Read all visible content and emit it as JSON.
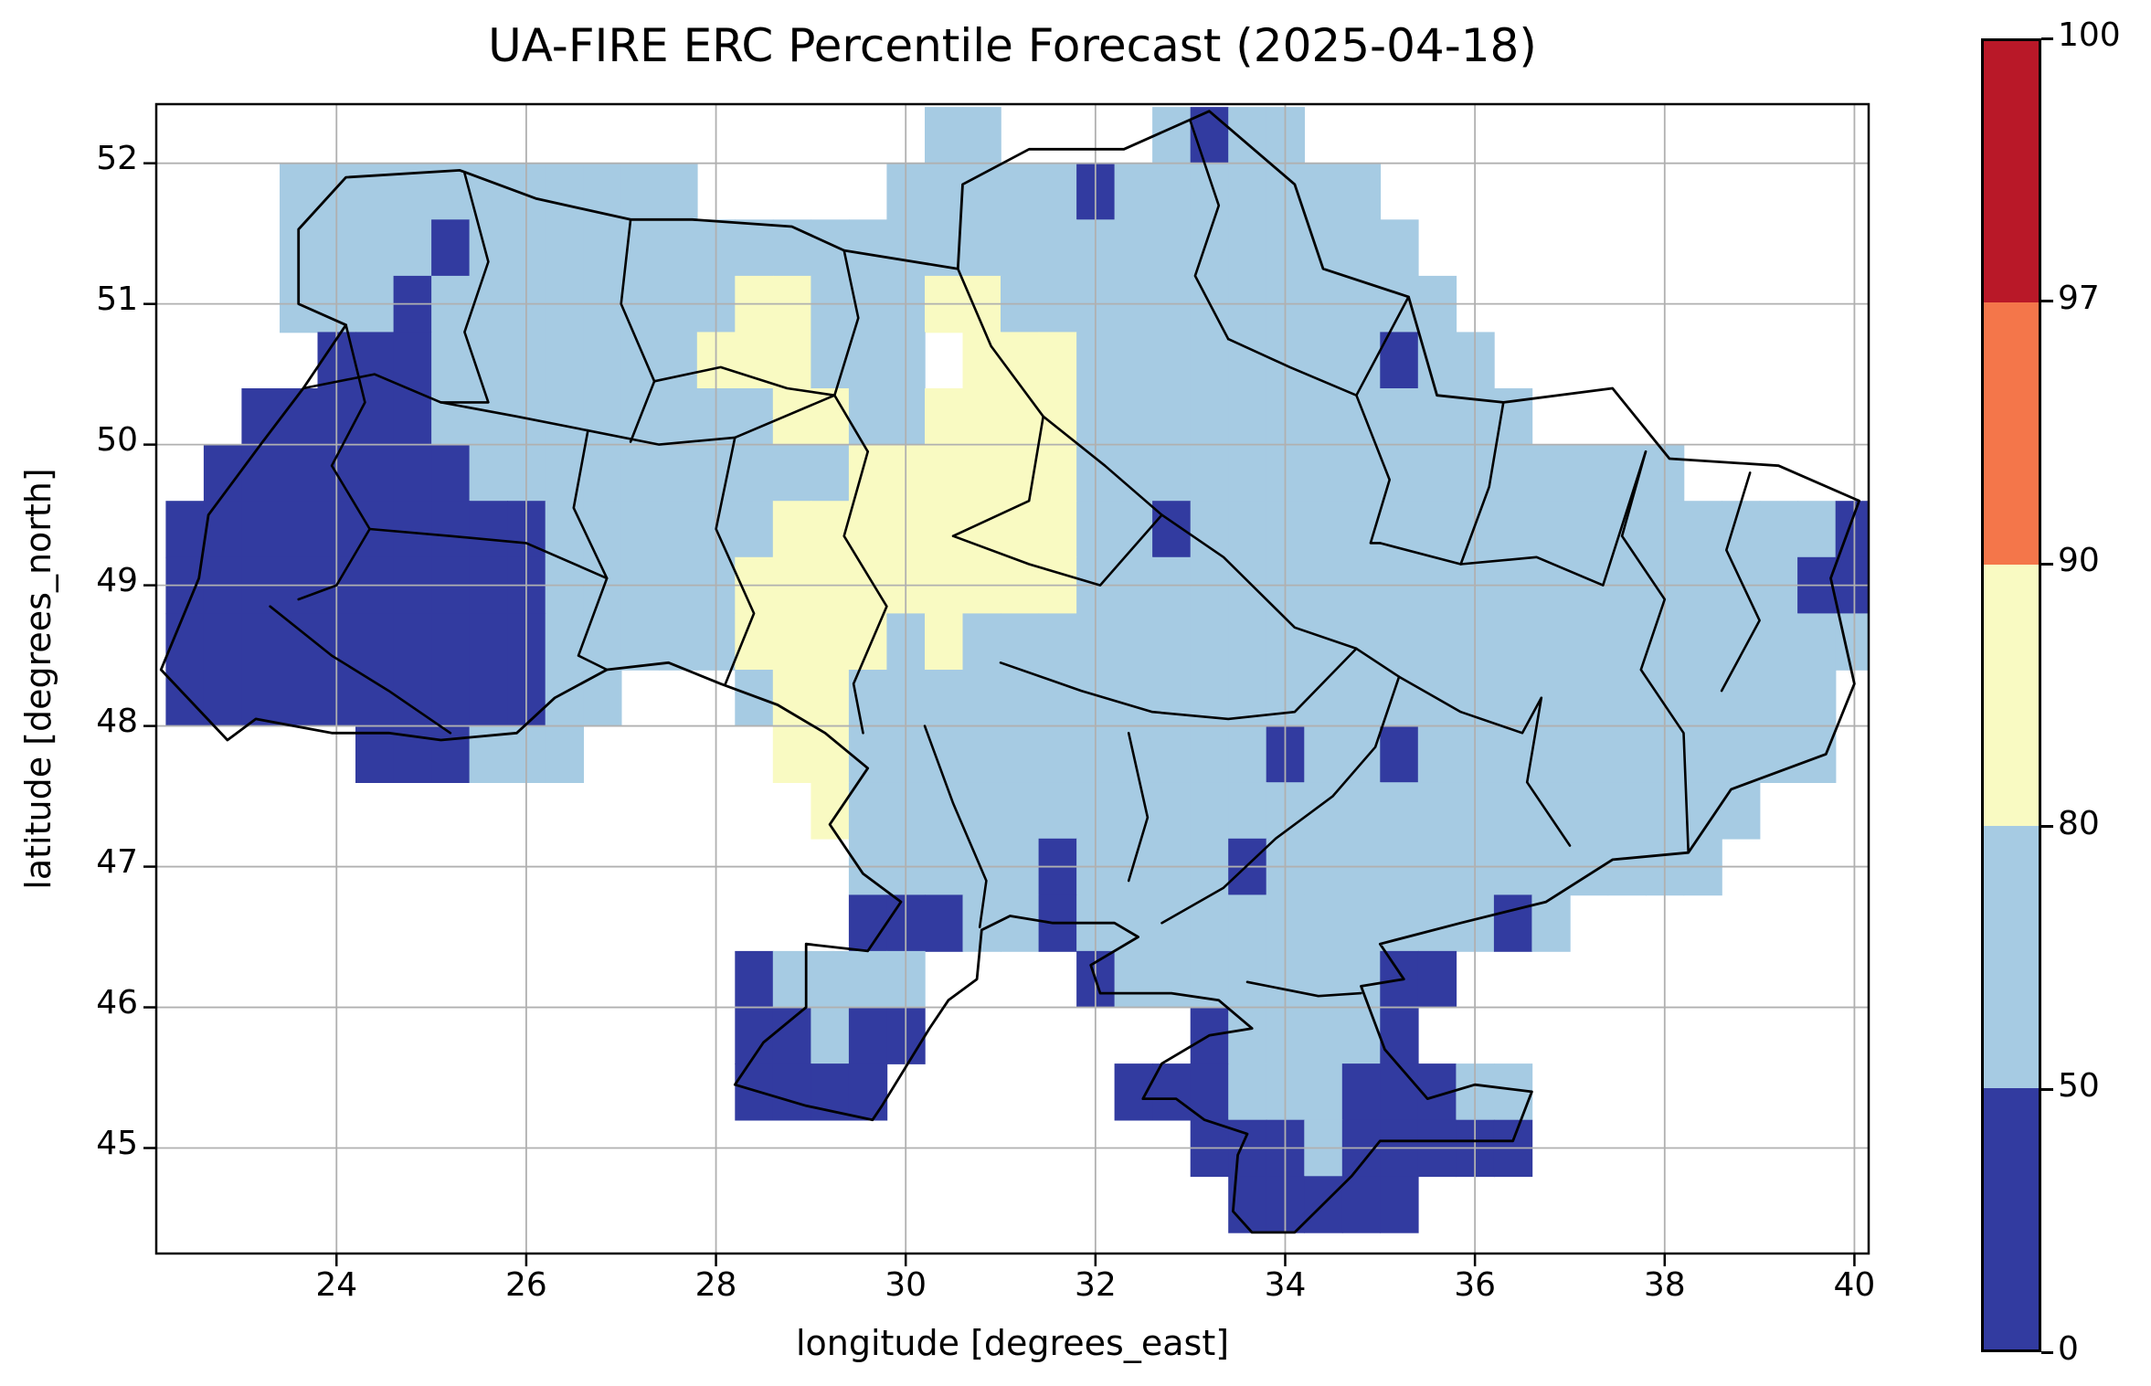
{
  "title": "UA-FIRE ERC Percentile Forecast (2025-04-18)",
  "axes": {
    "xlabel": "longitude [degrees_east]",
    "ylabel": "latitude [degrees_north]"
  },
  "colorbar": {
    "tick_labels": [
      "100",
      "97",
      "90",
      "80",
      "50",
      "0"
    ],
    "segments": [
      {
        "label": "97-100",
        "color": "#b91828"
      },
      {
        "label": "90-97",
        "color": "#f4764a"
      },
      {
        "label": "80-90",
        "color": "#f9fac2"
      },
      {
        "label": "50-80",
        "color": "#a6cbe3"
      },
      {
        "label": "0-50",
        "color": "#323ba0"
      }
    ]
  },
  "chart_data": {
    "type": "heatmap",
    "title": "UA-FIRE ERC Percentile Forecast (2025-04-18)",
    "xlabel": "longitude [degrees_east]",
    "ylabel": "latitude [degrees_north]",
    "x_range": [
      22.1,
      40.15
    ],
    "y_range": [
      44.25,
      52.42
    ],
    "xticks": [
      24,
      26,
      28,
      30,
      32,
      34,
      36,
      38,
      40
    ],
    "xtick_labels": [
      "24",
      "26",
      "28",
      "30",
      "32",
      "34",
      "36",
      "38",
      "40"
    ],
    "yticks": [
      45,
      46,
      47,
      48,
      49,
      50,
      51,
      52
    ],
    "ytick_labels": [
      "45",
      "46",
      "47",
      "48",
      "49",
      "50",
      "51",
      "52"
    ],
    "grid_on": true,
    "gridline_color": "#b0b0b0",
    "value_bins": [
      {
        "key": "1",
        "range": [
          0,
          50
        ],
        "color": "#323ba0"
      },
      {
        "key": "2",
        "range": [
          50,
          80
        ],
        "color": "#a6cbe3"
      },
      {
        "key": "3",
        "range": [
          80,
          90
        ],
        "color": "#f9fac2"
      },
      {
        "key": "4",
        "range": [
          90,
          97
        ],
        "color": "#f4764a"
      },
      {
        "key": "5",
        "range": [
          97,
          100
        ],
        "color": "#b91828"
      }
    ],
    "bin_colors": {
      "1": "#323ba0",
      "2": "#a6cbe3",
      "3": "#f9fac2",
      "4": "#f4764a",
      "5": "#b91828"
    },
    "cell_size_deg": 0.4,
    "grid_origin": {
      "lon": 22.2,
      "lat_top": 52.4
    },
    "grid_rows": [
      "....................22....2122...............",
      "...22222222222.....2222212222222.............",
      "...222212222222222222222222222222............",
      "...2221222222223322233222222222222...........",
      "....1112222222333222.33322222222122..........",
      "..1111122222222233223333222222222222.........",
      ".111111122222222223333332222222222222222.....",
      "111111111122222233333333221222222222222222221",
      "111111111122222333333333222222222222222222211",
      "111111111122222333323222222222222222222222222",
      "111111111122...23322222222222222222222222222.",
      ".....111222.....3322222222222122122222222222.",
      ".................3222222222222222222222222...",
      "..................22222122221222222222222....",
      "..................1112212222222222212........",
      "...............12222....1222222211...........",
      "...............11211.......122221............",
      "...............1111......11122211122.........",
      "...........................111211111.........",
      "............................11111............"
    ],
    "boundaries": {
      "national": [
        [
          23.6,
          51.53
        ],
        [
          24.1,
          51.9
        ],
        [
          25.3,
          51.95
        ],
        [
          26.1,
          51.75
        ],
        [
          27.1,
          51.6
        ],
        [
          27.75,
          51.6
        ],
        [
          28.8,
          51.55
        ],
        [
          29.35,
          51.38
        ],
        [
          30.55,
          51.25
        ],
        [
          30.6,
          51.85
        ],
        [
          31.3,
          52.1
        ],
        [
          32.3,
          52.1
        ],
        [
          33.2,
          52.37
        ],
        [
          34.1,
          51.85
        ],
        [
          34.4,
          51.25
        ],
        [
          35.3,
          51.05
        ],
        [
          35.6,
          50.35
        ],
        [
          36.3,
          50.3
        ],
        [
          37.45,
          50.4
        ],
        [
          38.05,
          49.9
        ],
        [
          39.2,
          49.85
        ],
        [
          40.05,
          49.6
        ],
        [
          39.75,
          49.05
        ],
        [
          40.0,
          48.3
        ],
        [
          39.7,
          47.8
        ],
        [
          38.7,
          47.55
        ],
        [
          38.25,
          47.1
        ],
        [
          37.45,
          47.05
        ],
        [
          36.75,
          46.75
        ],
        [
          35.85,
          46.6
        ],
        [
          35.0,
          46.45
        ],
        [
          35.25,
          46.2
        ],
        [
          34.8,
          46.15
        ],
        [
          35.05,
          45.7
        ],
        [
          35.5,
          45.35
        ],
        [
          36.0,
          45.45
        ],
        [
          36.6,
          45.4
        ],
        [
          36.4,
          45.05
        ],
        [
          35.85,
          45.05
        ],
        [
          35.0,
          45.05
        ],
        [
          34.7,
          44.8
        ],
        [
          34.1,
          44.4
        ],
        [
          33.65,
          44.4
        ],
        [
          33.45,
          44.55
        ],
        [
          33.5,
          44.95
        ],
        [
          33.6,
          45.1
        ],
        [
          33.15,
          45.2
        ],
        [
          32.85,
          45.35
        ],
        [
          32.5,
          45.35
        ],
        [
          32.7,
          45.6
        ],
        [
          33.2,
          45.8
        ],
        [
          33.65,
          45.85
        ],
        [
          33.3,
          46.05
        ],
        [
          32.8,
          46.1
        ],
        [
          32.05,
          46.1
        ],
        [
          31.95,
          46.3
        ],
        [
          32.45,
          46.5
        ],
        [
          32.2,
          46.6
        ],
        [
          31.55,
          46.6
        ],
        [
          31.1,
          46.65
        ],
        [
          30.8,
          46.55
        ],
        [
          30.75,
          46.2
        ],
        [
          30.45,
          46.05
        ],
        [
          30.25,
          45.85
        ],
        [
          29.75,
          45.3
        ],
        [
          29.65,
          45.2
        ],
        [
          28.95,
          45.3
        ],
        [
          28.2,
          45.45
        ],
        [
          28.5,
          45.75
        ],
        [
          28.95,
          46.0
        ],
        [
          28.95,
          46.45
        ],
        [
          29.6,
          46.4
        ],
        [
          29.95,
          46.75
        ],
        [
          29.55,
          46.95
        ],
        [
          29.2,
          47.3
        ],
        [
          29.6,
          47.7
        ],
        [
          29.15,
          47.95
        ],
        [
          28.65,
          48.15
        ],
        [
          28.05,
          48.3
        ],
        [
          27.5,
          48.45
        ],
        [
          26.85,
          48.4
        ],
        [
          26.3,
          48.2
        ],
        [
          25.9,
          47.95
        ],
        [
          25.1,
          47.9
        ],
        [
          24.55,
          47.95
        ],
        [
          23.95,
          47.95
        ],
        [
          23.15,
          48.05
        ],
        [
          22.85,
          47.9
        ],
        [
          22.15,
          48.4
        ],
        [
          22.55,
          49.05
        ],
        [
          22.65,
          49.5
        ],
        [
          23.2,
          50.0
        ],
        [
          23.65,
          50.4
        ],
        [
          24.1,
          50.85
        ],
        [
          23.6,
          51.0
        ]
      ],
      "oblast_lines": [
        [
          [
            25.35,
            51.93
          ],
          [
            25.6,
            51.3
          ],
          [
            25.35,
            50.8
          ],
          [
            25.6,
            50.3
          ],
          [
            25.1,
            50.3
          ]
        ],
        [
          [
            27.1,
            51.6
          ],
          [
            27.0,
            51.0
          ],
          [
            27.35,
            50.45
          ],
          [
            27.1,
            50.02
          ]
        ],
        [
          [
            29.35,
            51.38
          ],
          [
            29.5,
            50.9
          ],
          [
            29.25,
            50.35
          ],
          [
            29.6,
            49.95
          ]
        ],
        [
          [
            33.0,
            52.3
          ],
          [
            33.3,
            51.7
          ],
          [
            33.05,
            51.2
          ],
          [
            33.4,
            50.75
          ]
        ],
        [
          [
            30.55,
            51.25
          ],
          [
            30.9,
            50.7
          ],
          [
            31.45,
            50.2
          ],
          [
            32.1,
            49.85
          ],
          [
            32.7,
            49.5
          ],
          [
            33.35,
            49.2
          ],
          [
            34.1,
            48.7
          ],
          [
            34.75,
            48.55
          ],
          [
            35.2,
            48.35
          ],
          [
            34.95,
            47.85
          ],
          [
            34.5,
            47.5
          ],
          [
            33.9,
            47.2
          ],
          [
            33.35,
            46.85
          ],
          [
            32.7,
            46.6
          ]
        ],
        [
          [
            33.4,
            50.75
          ],
          [
            34.05,
            50.55
          ],
          [
            34.75,
            50.35
          ],
          [
            35.3,
            51.05
          ]
        ],
        [
          [
            34.75,
            50.35
          ],
          [
            35.1,
            49.75
          ],
          [
            34.9,
            49.3
          ],
          [
            35.0,
            49.3
          ]
        ],
        [
          [
            37.8,
            49.95
          ],
          [
            37.55,
            49.35
          ],
          [
            38.0,
            48.9
          ],
          [
            37.75,
            48.4
          ],
          [
            38.2,
            47.95
          ],
          [
            38.25,
            47.1
          ]
        ],
        [
          [
            38.9,
            49.8
          ],
          [
            38.65,
            49.25
          ],
          [
            39.0,
            48.75
          ],
          [
            38.6,
            48.25
          ]
        ],
        [
          [
            23.65,
            50.4
          ],
          [
            24.4,
            50.5
          ],
          [
            25.1,
            50.3
          ],
          [
            25.9,
            50.2
          ],
          [
            26.65,
            50.1
          ],
          [
            27.4,
            50.0
          ],
          [
            28.2,
            50.05
          ],
          [
            29.25,
            50.35
          ]
        ],
        [
          [
            26.65,
            50.1
          ],
          [
            26.5,
            49.55
          ],
          [
            26.85,
            49.05
          ],
          [
            26.55,
            48.5
          ],
          [
            26.85,
            48.4
          ]
        ],
        [
          [
            29.6,
            49.95
          ],
          [
            29.35,
            49.35
          ],
          [
            29.8,
            48.85
          ],
          [
            29.45,
            48.3
          ],
          [
            29.55,
            47.95
          ]
        ],
        [
          [
            24.1,
            50.85
          ],
          [
            24.3,
            50.3
          ],
          [
            23.95,
            49.85
          ],
          [
            24.35,
            49.4
          ],
          [
            24.0,
            49.0
          ],
          [
            23.6,
            48.9
          ]
        ],
        [
          [
            24.35,
            49.4
          ],
          [
            25.2,
            49.35
          ],
          [
            26.0,
            49.3
          ],
          [
            26.85,
            49.05
          ]
        ],
        [
          [
            23.3,
            48.85
          ],
          [
            23.95,
            48.5
          ],
          [
            24.55,
            48.25
          ],
          [
            25.2,
            47.95
          ]
        ],
        [
          [
            30.5,
            49.35
          ],
          [
            31.3,
            49.15
          ],
          [
            32.05,
            49.0
          ],
          [
            32.7,
            49.5
          ]
        ],
        [
          [
            31.0,
            48.45
          ],
          [
            31.85,
            48.25
          ],
          [
            32.6,
            48.1
          ],
          [
            33.4,
            48.05
          ],
          [
            34.1,
            48.1
          ],
          [
            34.75,
            48.55
          ]
        ],
        [
          [
            30.2,
            48.0
          ],
          [
            30.5,
            47.45
          ],
          [
            30.85,
            46.9
          ],
          [
            30.78,
            46.57
          ]
        ],
        [
          [
            32.35,
            47.95
          ],
          [
            32.55,
            47.35
          ],
          [
            32.35,
            46.9
          ]
        ],
        [
          [
            36.7,
            48.2
          ],
          [
            36.55,
            47.6
          ],
          [
            37.0,
            47.15
          ]
        ],
        [
          [
            35.0,
            49.3
          ],
          [
            35.85,
            49.15
          ],
          [
            36.65,
            49.2
          ],
          [
            37.35,
            49.0
          ],
          [
            37.8,
            49.95
          ]
        ],
        [
          [
            33.6,
            46.18
          ],
          [
            34.35,
            46.08
          ],
          [
            34.8,
            46.1
          ]
        ],
        [
          [
            36.3,
            50.3
          ],
          [
            36.15,
            49.7
          ],
          [
            35.85,
            49.15
          ]
        ],
        [
          [
            28.2,
            50.05
          ],
          [
            28.0,
            49.4
          ],
          [
            28.4,
            48.8
          ],
          [
            28.1,
            48.3
          ]
        ],
        [
          [
            31.45,
            50.2
          ],
          [
            31.3,
            49.6
          ],
          [
            30.5,
            49.35
          ]
        ],
        [
          [
            35.2,
            48.35
          ],
          [
            35.85,
            48.1
          ],
          [
            36.5,
            47.95
          ],
          [
            36.7,
            48.2
          ]
        ],
        [
          [
            27.35,
            50.45
          ],
          [
            28.05,
            50.55
          ],
          [
            28.75,
            50.4
          ],
          [
            29.25,
            50.35
          ]
        ]
      ]
    }
  }
}
